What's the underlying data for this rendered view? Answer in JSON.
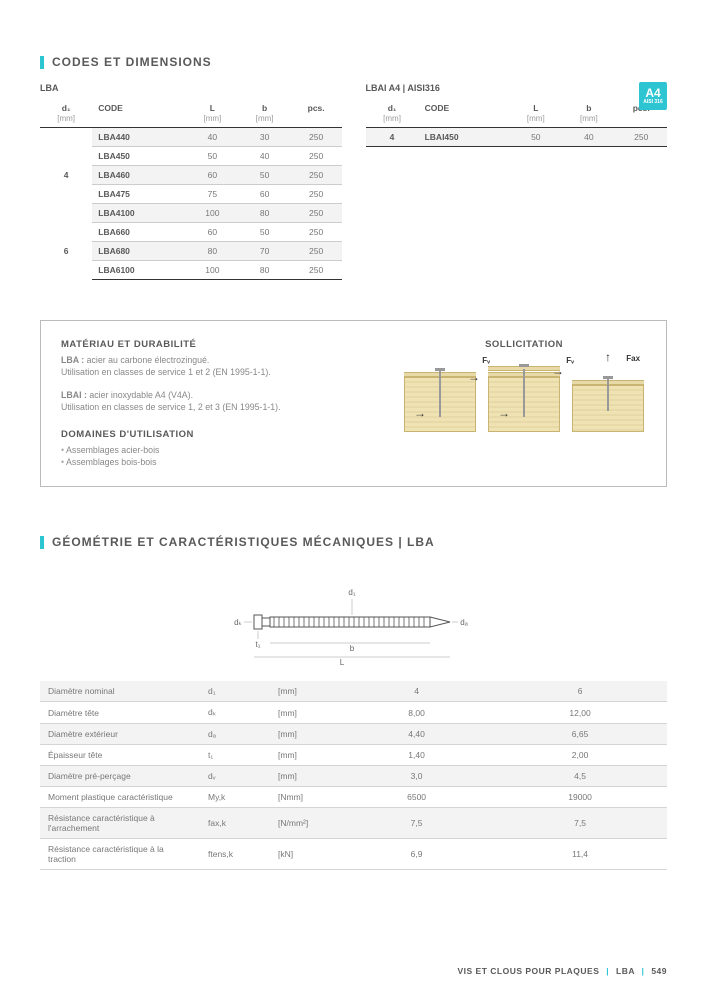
{
  "badge": {
    "main": "A4",
    "sub": "AISI 316"
  },
  "section1": {
    "title": "CODES ET DIMENSIONS",
    "left_label": "LBA",
    "right_label": "LBAI A4 | AISI316",
    "headers": {
      "d1": "d₁",
      "code": "CODE",
      "L": "L",
      "b": "b",
      "pcs": "pcs."
    },
    "units": {
      "d1": "[mm]",
      "code": "",
      "L": "[mm]",
      "b": "[mm]",
      "pcs": ""
    },
    "left_groups": [
      {
        "d1": "4",
        "rows": [
          {
            "code": "LBA440",
            "L": "40",
            "b": "30",
            "pcs": "250"
          },
          {
            "code": "LBA450",
            "L": "50",
            "b": "40",
            "pcs": "250"
          },
          {
            "code": "LBA460",
            "L": "60",
            "b": "50",
            "pcs": "250"
          },
          {
            "code": "LBA475",
            "L": "75",
            "b": "60",
            "pcs": "250"
          },
          {
            "code": "LBA4100",
            "L": "100",
            "b": "80",
            "pcs": "250"
          }
        ]
      },
      {
        "d1": "6",
        "rows": [
          {
            "code": "LBA660",
            "L": "60",
            "b": "50",
            "pcs": "250"
          },
          {
            "code": "LBA680",
            "L": "80",
            "b": "70",
            "pcs": "250"
          },
          {
            "code": "LBA6100",
            "L": "100",
            "b": "80",
            "pcs": "250"
          }
        ]
      }
    ],
    "right_rows": [
      {
        "d1": "4",
        "code": "LBAI450",
        "L": "50",
        "b": "40",
        "pcs": "250"
      }
    ]
  },
  "info": {
    "mat_title": "MATÉRIAU ET DURABILITÉ",
    "mat_p1_strong": "LBA :",
    "mat_p1": " acier au carbone électrozingué.",
    "mat_p1b": "Utilisation en classes de service 1 et 2 (EN 1995-1-1).",
    "mat_p2_strong": "LBAI :",
    "mat_p2": " acier inoxydable A4 (V4A).",
    "mat_p2b": "Utilisation en classes de service 1, 2 et 3 (EN 1995-1-1).",
    "dom_title": "DOMAINES D'UTILISATION",
    "dom_items": [
      "Assemblages acier-bois",
      "Assemblages bois-bois"
    ],
    "sol_title": "SOLLICITATION",
    "sol_labels": {
      "Fv": "Fᵥ",
      "Fax": "Fax"
    }
  },
  "section2": {
    "title": "GÉOMÉTRIE ET CARACTÉRISTIQUES MÉCANIQUES | LBA",
    "diagram_labels": {
      "d1": "d₁",
      "dk": "dₖ",
      "da": "dₐ",
      "t1": "t₁",
      "b": "b",
      "L": "L"
    },
    "headers": {
      "sym": "d₁",
      "unit": "[mm]",
      "v1": "4",
      "v2": "6"
    },
    "rows": [
      {
        "label": "Diamètre nominal",
        "sym": "d₁",
        "unit": "[mm]",
        "v1": "4",
        "v2": "6",
        "header": true
      },
      {
        "label": "Diamètre tête",
        "sym": "dₖ",
        "unit": "[mm]",
        "v1": "8,00",
        "v2": "12,00"
      },
      {
        "label": "Diamètre extérieur",
        "sym": "dₐ",
        "unit": "[mm]",
        "v1": "4,40",
        "v2": "6,65"
      },
      {
        "label": "Épaisseur tête",
        "sym": "t₁",
        "unit": "[mm]",
        "v1": "1,40",
        "v2": "2,00"
      },
      {
        "label": "Diamètre pré-perçage",
        "sym": "dᵥ",
        "unit": "[mm]",
        "v1": "3,0",
        "v2": "4,5"
      },
      {
        "label": "Moment plastique caractéristique",
        "sym": "My,k",
        "unit": "[Nmm]",
        "v1": "6500",
        "v2": "19000"
      },
      {
        "label": "Résistance caractéristique à l'arrachement",
        "sym": "fax,k",
        "unit": "[N/mm²]",
        "v1": "7,5",
        "v2": "7,5"
      },
      {
        "label": "Résistance caractéristique à la traction",
        "sym": "ftens,k",
        "unit": "[kN]",
        "v1": "6,9",
        "v2": "11,4"
      }
    ]
  },
  "footer": {
    "t1": "VIS ET CLOUS POUR PLAQUES",
    "t2": "LBA",
    "t3": "549"
  }
}
